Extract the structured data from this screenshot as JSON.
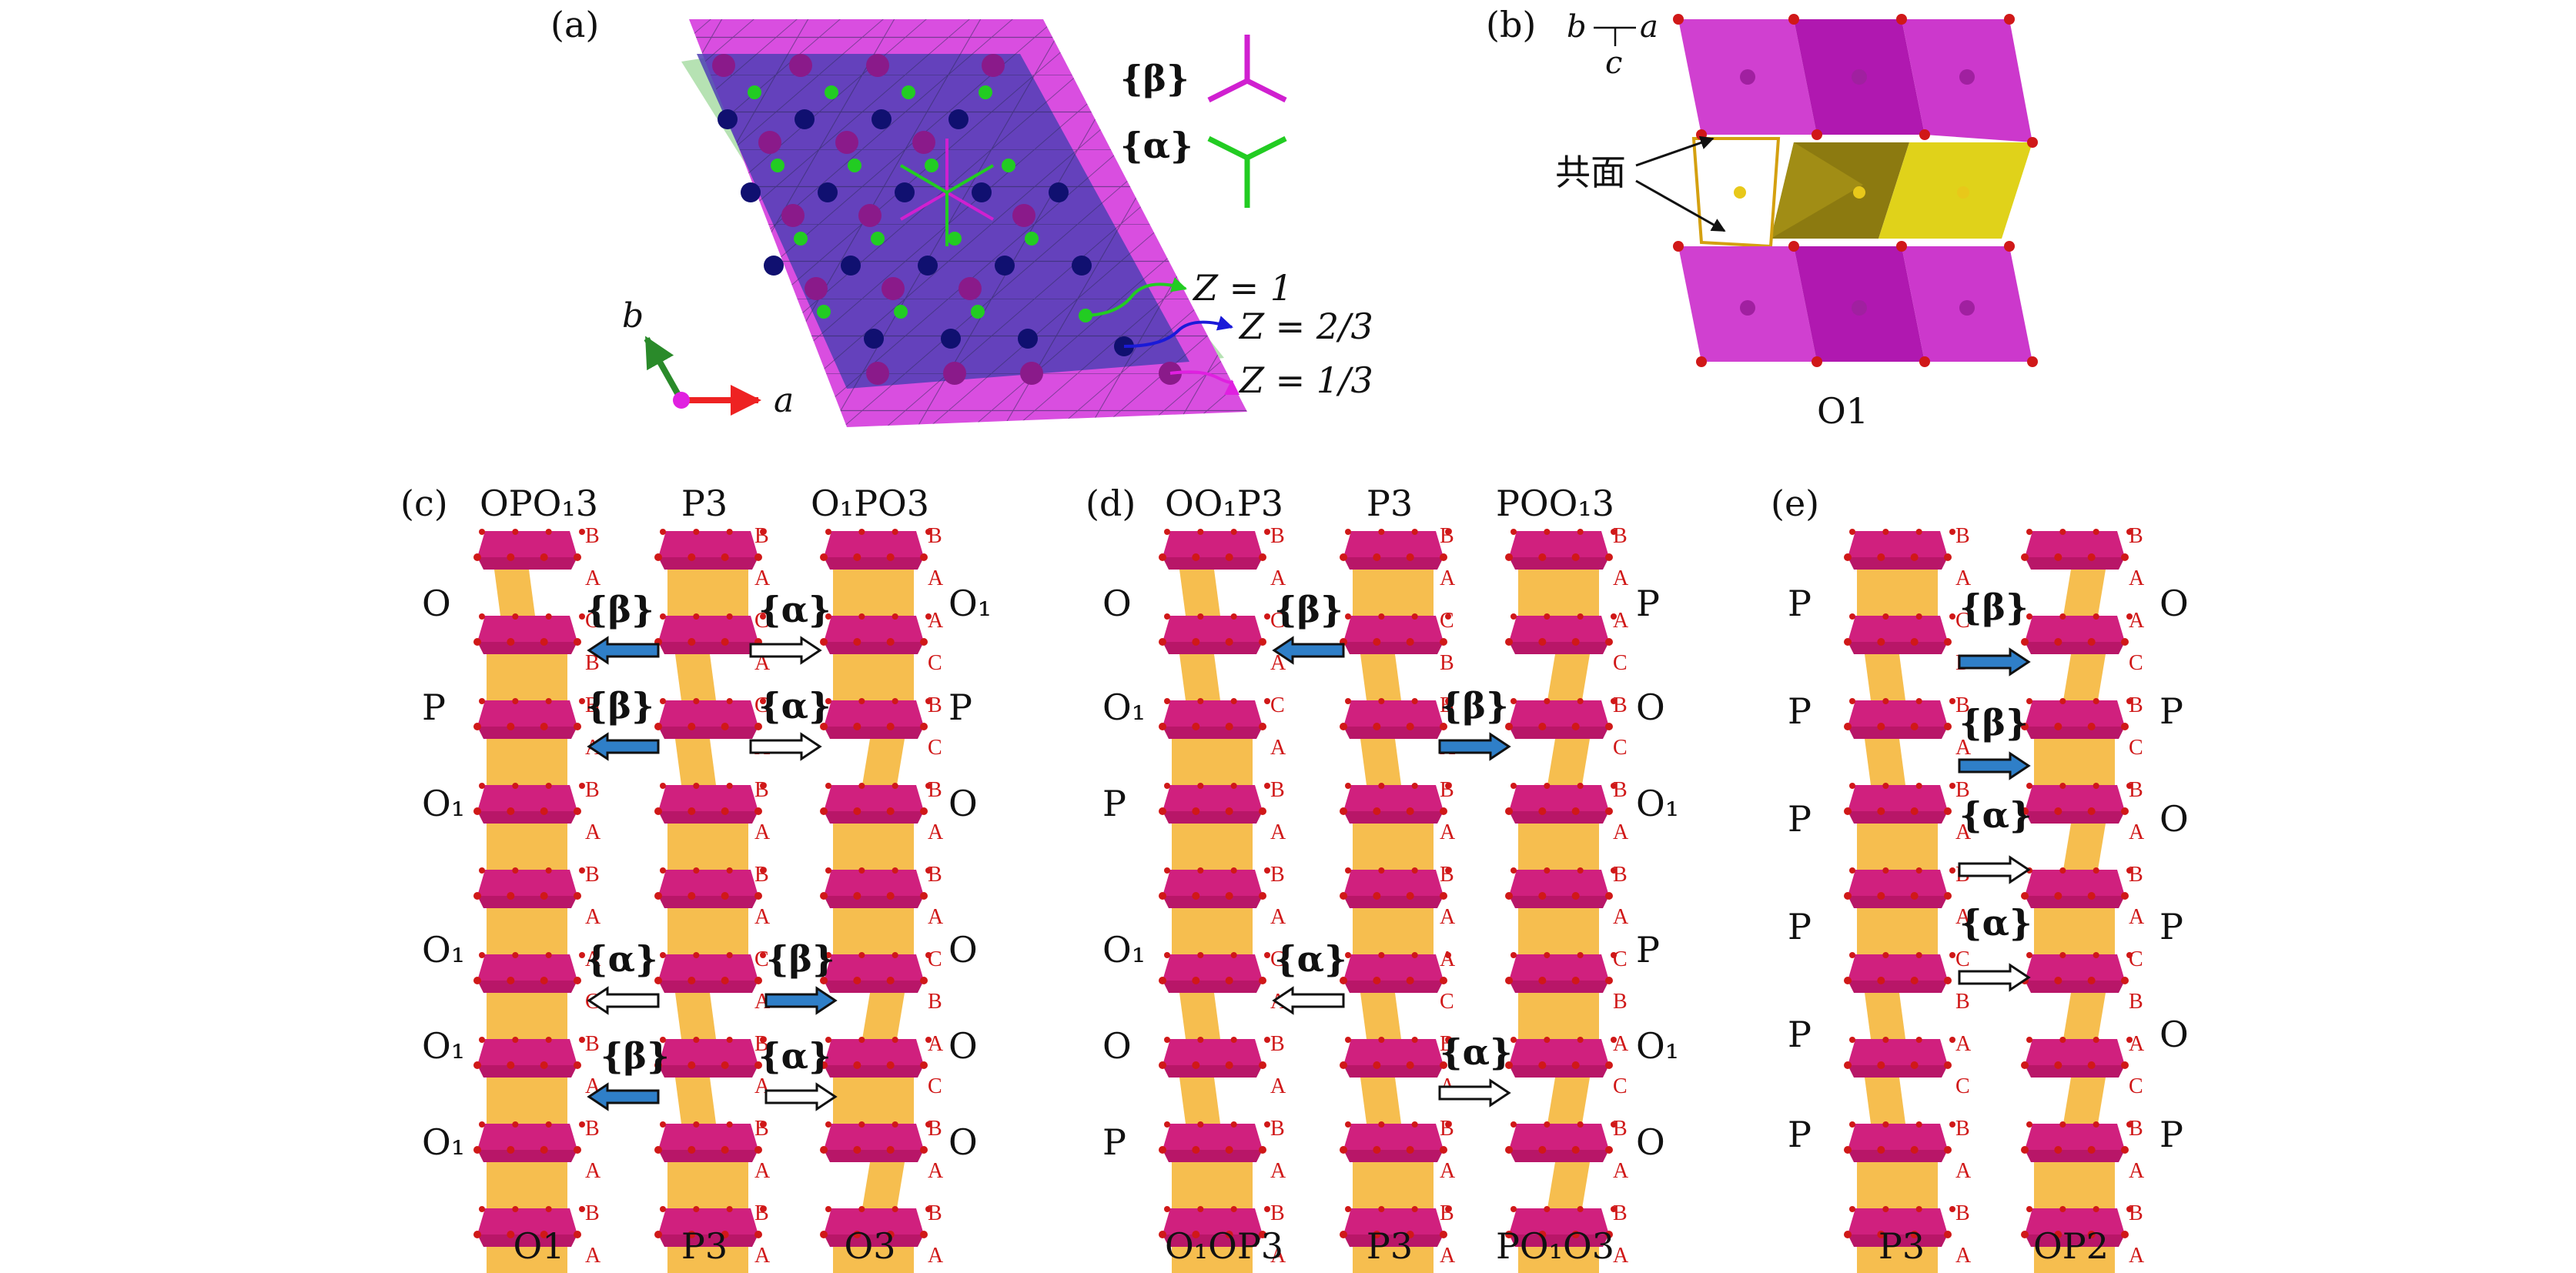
{
  "panels": {
    "a": {
      "label": "(a)",
      "beta_label": "{β}",
      "alpha_label": "{α}",
      "z1": "Z = 1",
      "z23": "Z = 2/3",
      "z13": "Z = 1/3",
      "axis_a": "a",
      "axis_b": "b"
    },
    "b": {
      "label": "(b)",
      "axis_b": "b",
      "axis_a": "a",
      "axis_c": "c",
      "annotation": "共面",
      "caption": "O1"
    },
    "c": {
      "label": "(c)",
      "col_titles": [
        "OPO₁3",
        "P3",
        "O₁PO3"
      ],
      "col_bottoms": [
        "O1",
        "P3",
        "O3"
      ],
      "left_labels": [
        "O",
        "P",
        "O₁",
        "O₁",
        "O₁",
        "O₁"
      ],
      "right_labels": [
        "O₁",
        "P",
        "O",
        "O",
        "O",
        "O"
      ],
      "arrows": [
        "{β}",
        "{α}",
        "{β}",
        "{α}",
        "{α}",
        "{β}",
        "{β}",
        "{α}"
      ]
    },
    "d": {
      "label": "(d)",
      "col_titles": [
        "OO₁P3",
        "P3",
        "POO₁3"
      ],
      "col_bottoms": [
        "O₁OP3",
        "P3",
        "PO₁O3"
      ],
      "left_labels": [
        "O",
        "O₁",
        "P",
        "O₁",
        "O",
        "P"
      ],
      "right_labels": [
        "P",
        "O",
        "O₁",
        "P",
        "O₁",
        "O"
      ],
      "arrows": [
        "{β}",
        "{β}",
        "{α}",
        "{α}"
      ]
    },
    "e": {
      "label": "(e)",
      "col_bottoms": [
        "P3",
        "OP2"
      ],
      "left_labels": [
        "P",
        "P",
        "P",
        "P",
        "P",
        "P"
      ],
      "right_labels": [
        "O",
        "P",
        "O",
        "P",
        "O",
        "P"
      ],
      "arrows": [
        "{β}",
        "{β}",
        "{α}",
        "{α}"
      ]
    }
  },
  "colors": {
    "magenta_octahedra": "#d0207e",
    "yellow_prisms": "#f5b940",
    "beta_arrow": "#2f7fc8",
    "alpha_arrow": "#ffffff",
    "site_label": "#d01818",
    "z1": "#22cc22",
    "z23": "#1a1ad8",
    "z13": "#e020e0"
  }
}
